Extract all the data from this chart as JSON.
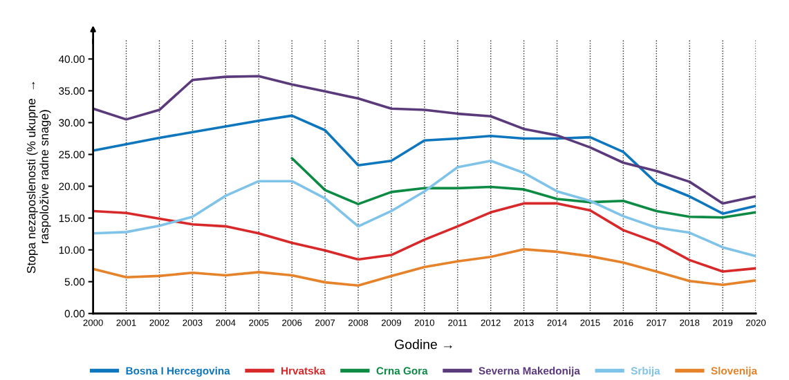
{
  "chart_data": {
    "type": "line",
    "xlabel": "Godine →",
    "ylabel": "Stopa nezaposlenosti (% ukupne  →\nraspoložive radne snage)",
    "categories": [
      "2000",
      "2001",
      "2002",
      "2003",
      "2004",
      "2005",
      "2006",
      "2007",
      "2008",
      "2009",
      "2010",
      "2011",
      "2012",
      "2013",
      "2014",
      "2015",
      "2016",
      "2017",
      "2018",
      "2019",
      "2020"
    ],
    "series": [
      {
        "name": "Bosna I Hercegovina",
        "color": "#0e76bc",
        "values": [
          25.6,
          26.6,
          27.6,
          28.5,
          29.4,
          30.3,
          31.1,
          28.8,
          23.3,
          24.0,
          27.2,
          27.5,
          27.9,
          27.5,
          27.5,
          27.7,
          25.4,
          20.5,
          18.4,
          15.7,
          16.9
        ]
      },
      {
        "name": "Hrvatska",
        "color": "#d7282a",
        "values": [
          16.1,
          15.8,
          14.9,
          14.0,
          13.7,
          12.6,
          11.1,
          9.9,
          8.5,
          9.2,
          11.6,
          13.7,
          15.9,
          17.3,
          17.3,
          16.2,
          13.1,
          11.2,
          8.4,
          6.6,
          7.1
        ]
      },
      {
        "name": "Crna Gora",
        "color": "#0d8a44",
        "values": [
          null,
          null,
          null,
          null,
          null,
          null,
          24.4,
          19.4,
          17.2,
          19.1,
          19.7,
          19.7,
          19.9,
          19.5,
          18.0,
          17.5,
          17.7,
          16.1,
          15.2,
          15.1,
          15.9
        ]
      },
      {
        "name": "Severna Makedonija",
        "color": "#5b3a7c",
        "values": [
          32.2,
          30.5,
          32.0,
          36.7,
          37.2,
          37.3,
          36.0,
          34.9,
          33.8,
          32.2,
          32.0,
          31.4,
          31.0,
          29.0,
          28.0,
          26.1,
          23.7,
          22.4,
          20.7,
          17.3,
          18.4
        ]
      },
      {
        "name": "Srbija",
        "color": "#7fc3e8",
        "values": [
          12.6,
          12.8,
          13.8,
          15.2,
          18.5,
          20.8,
          20.8,
          18.1,
          13.7,
          16.1,
          19.2,
          23.0,
          24.0,
          22.1,
          19.2,
          17.7,
          15.3,
          13.5,
          12.7,
          10.4,
          9.0
        ]
      },
      {
        "name": "Slovenija",
        "color": "#e5822a",
        "values": [
          7.0,
          5.7,
          5.9,
          6.4,
          6.0,
          6.5,
          6.0,
          4.9,
          4.4,
          5.9,
          7.3,
          8.2,
          8.9,
          10.1,
          9.7,
          9.0,
          8.0,
          6.6,
          5.1,
          4.5,
          5.2
        ]
      }
    ],
    "ylim": [
      0,
      43
    ],
    "yticks": [
      {
        "value": 0,
        "label": "0.00"
      },
      {
        "value": 5,
        "label": "5.00"
      },
      {
        "value": 10,
        "label": "10.00"
      },
      {
        "value": 15,
        "label": "15.00"
      },
      {
        "value": 20,
        "label": "20.00"
      },
      {
        "value": 25,
        "label": "25.00"
      },
      {
        "value": 30,
        "label": "30.00"
      },
      {
        "value": 35,
        "label": "35.00"
      },
      {
        "value": 40,
        "label": "40.00"
      }
    ],
    "grid": "x",
    "legend": "bottom",
    "marker": "none",
    "line_style": "solid"
  }
}
